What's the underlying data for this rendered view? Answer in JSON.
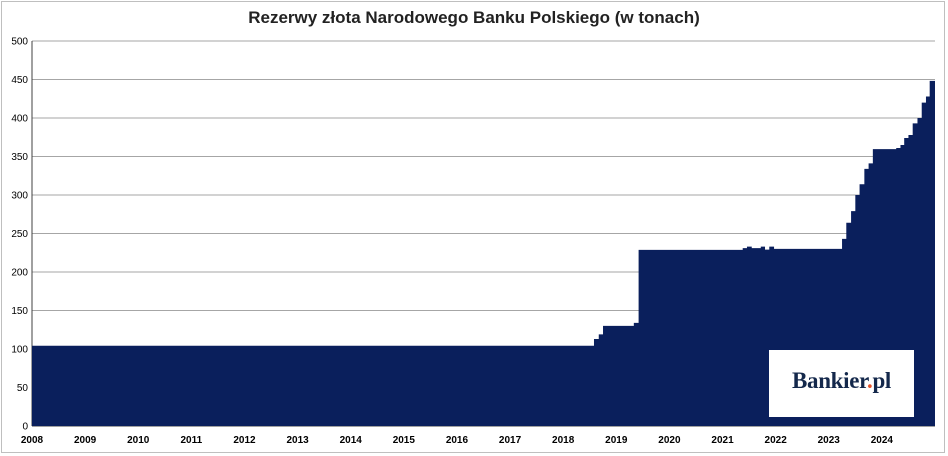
{
  "chart_data": {
    "type": "area",
    "title": "Rezerwy złota Narodowego Banku Polskiego (w tonach)",
    "xlabel": "",
    "ylabel": "",
    "x_ticks": [
      "2008",
      "2009",
      "2010",
      "2011",
      "2012",
      "2013",
      "2014",
      "2015",
      "2016",
      "2017",
      "2018",
      "2019",
      "2020",
      "2021",
      "2022",
      "2023",
      "2024"
    ],
    "y_ticks": [
      0,
      50,
      100,
      150,
      200,
      250,
      300,
      350,
      400,
      450,
      500
    ],
    "xlim": [
      2008.0,
      2025.0
    ],
    "ylim": [
      0,
      500
    ],
    "grid": "horizontal",
    "legend": "none",
    "color": "#0a1f5c",
    "series": [
      {
        "x": [
          2008.0,
          2018.5,
          2018.58,
          2018.67,
          2018.75,
          2019.25,
          2019.33,
          2019.42,
          2021.3,
          2021.38,
          2021.46,
          2021.55,
          2021.63,
          2021.72,
          2021.8,
          2021.88,
          2021.97,
          2023.17,
          2023.25,
          2023.33,
          2023.42,
          2023.5,
          2023.58,
          2023.67,
          2023.75,
          2023.83,
          2024.2,
          2024.27,
          2024.35,
          2024.42,
          2024.5,
          2024.58,
          2024.67,
          2024.75,
          2024.83,
          2024.9
        ],
        "y": [
          104.3,
          104.3,
          113,
          119,
          130,
          130,
          134,
          228.7,
          228.7,
          231,
          233,
          231,
          231,
          233,
          229,
          233,
          230,
          230,
          243,
          264,
          279,
          300,
          314,
          334,
          341,
          359.5,
          359.5,
          361,
          365,
          374,
          378,
          393,
          400,
          420,
          428,
          448.2
        ]
      }
    ]
  },
  "logo": {
    "name": "Bankier",
    "dot": ".",
    "tld": "pl"
  }
}
